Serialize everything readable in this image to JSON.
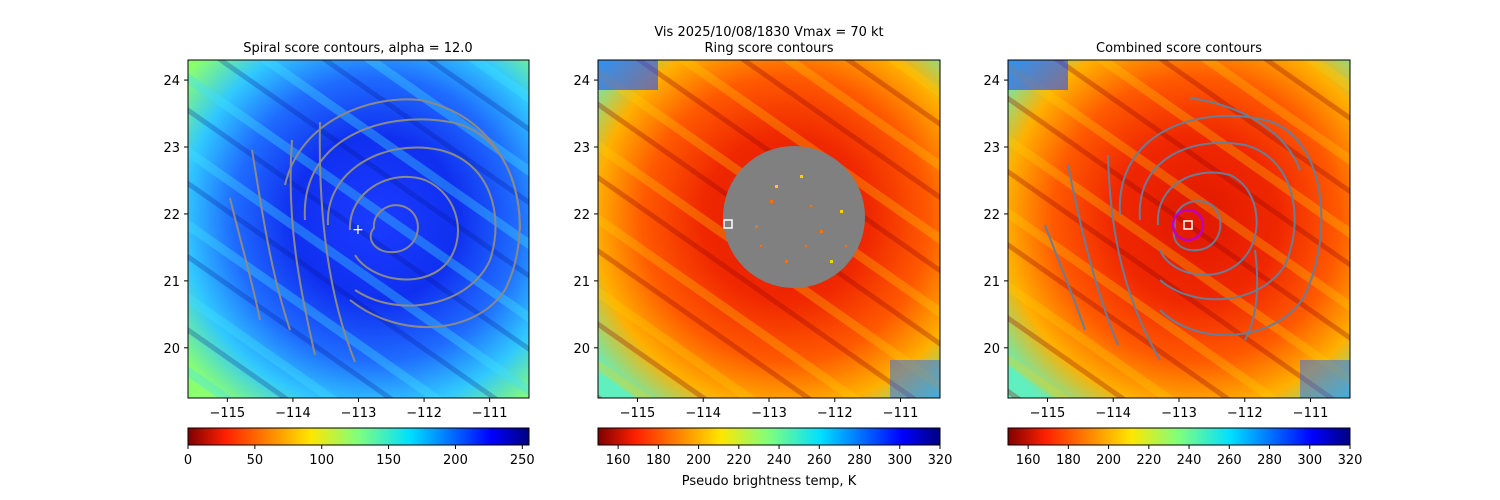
{
  "figure": {
    "suptitle": "Vis  2025/10/08/1830    Vmax = 70 kt",
    "colorbar_label": "Pseudo brightness temp, K"
  },
  "chart_data": [
    {
      "type": "heatmap",
      "id": "spiral",
      "title": "Spiral score contours, alpha = 12.0",
      "xlim": [
        -115.6,
        -110.4
      ],
      "ylim": [
        19.25,
        24.3
      ],
      "xticks": [
        -115,
        -114,
        -113,
        -112,
        -111
      ],
      "xtick_labels": [
        "−115",
        "−114",
        "−113",
        "−112",
        "−111"
      ],
      "yticks": [
        20,
        21,
        22,
        23,
        24
      ],
      "ytick_labels": [
        "20",
        "21",
        "22",
        "23",
        "24"
      ],
      "colormap": "jet_r",
      "colorbar": {
        "range": [
          0,
          255
        ],
        "ticks": [
          0,
          50,
          100,
          150,
          200,
          250
        ],
        "tick_labels": [
          "0",
          "50",
          "100",
          "150",
          "200",
          "250"
        ]
      },
      "contour_color": "#8a8a8a",
      "center_marker": {
        "symbol": "+",
        "lon": -112.88,
        "lat": 21.75,
        "color": "#ffffff"
      },
      "contours": [
        {
          "center": [
            -112.6,
            21.9
          ],
          "radii": [
            0.4,
            0.6,
            0.8
          ]
        },
        {
          "center": [
            -112.3,
            21.8
          ],
          "radii": [
            0.9,
            1.3,
            1.7,
            2.0
          ]
        },
        {
          "lines": [
            [
              [
                -115.4,
                22.2
              ],
              [
                -115.0,
                21.4
              ],
              [
                -114.6,
                20.4
              ]
            ],
            [
              [
                -114.7,
                22.8
              ],
              [
                -114.4,
                21.5
              ],
              [
                -114.1,
                20.4
              ]
            ],
            [
              [
                -114.0,
                22.8
              ],
              [
                -114.0,
                21.4
              ],
              [
                -113.6,
                19.9
              ]
            ]
          ]
        }
      ]
    },
    {
      "type": "heatmap",
      "id": "ring",
      "title": "Ring score contours",
      "xlim": [
        -115.6,
        -110.4
      ],
      "ylim": [
        19.25,
        24.3
      ],
      "xticks": [
        -115,
        -114,
        -113,
        -112,
        -111
      ],
      "xtick_labels": [
        "−115",
        "−114",
        "−113",
        "−112",
        "−111"
      ],
      "yticks": [
        20,
        21,
        22,
        23,
        24
      ],
      "ytick_labels": [
        "20",
        "21",
        "22",
        "23",
        "24"
      ],
      "colormap": "jet",
      "colorbar": {
        "range": [
          150,
          320
        ],
        "ticks": [
          160,
          180,
          200,
          220,
          240,
          260,
          280,
          300,
          320
        ],
        "tick_labels": [
          "160",
          "180",
          "200",
          "220",
          "240",
          "260",
          "280",
          "300",
          "320"
        ]
      },
      "masked_region": {
        "center_lon": -112.5,
        "center_lat": 21.95,
        "radius_deg": 1.07,
        "color": "#808080"
      },
      "center_marker": {
        "symbol": "square",
        "lon": -113.5,
        "lat": 21.8,
        "color": "#ffffff"
      }
    },
    {
      "type": "heatmap",
      "id": "combined",
      "title": "Combined score contours",
      "xlim": [
        -115.6,
        -110.4
      ],
      "ylim": [
        19.25,
        24.3
      ],
      "xticks": [
        -115,
        -114,
        -113,
        -112,
        -111
      ],
      "xtick_labels": [
        "−115",
        "−114",
        "−113",
        "−112",
        "−111"
      ],
      "yticks": [
        20,
        21,
        22,
        23,
        24
      ],
      "ytick_labels": [
        "20",
        "21",
        "22",
        "23",
        "24"
      ],
      "colormap": "jet",
      "colorbar": {
        "range": [
          150,
          320
        ],
        "ticks": [
          160,
          180,
          200,
          220,
          240,
          260,
          280,
          300,
          320
        ],
        "tick_labels": [
          "160",
          "180",
          "200",
          "220",
          "240",
          "260",
          "280",
          "300",
          "320"
        ]
      },
      "contour_color": "#6b7d95",
      "highlight_contour": {
        "center": [
          -112.75,
          21.8
        ],
        "radius_deg": 0.22,
        "color": "#c000c0"
      },
      "center_marker": {
        "symbol": "square",
        "lon": -112.75,
        "lat": 21.8,
        "color": "#ffffff"
      }
    }
  ]
}
